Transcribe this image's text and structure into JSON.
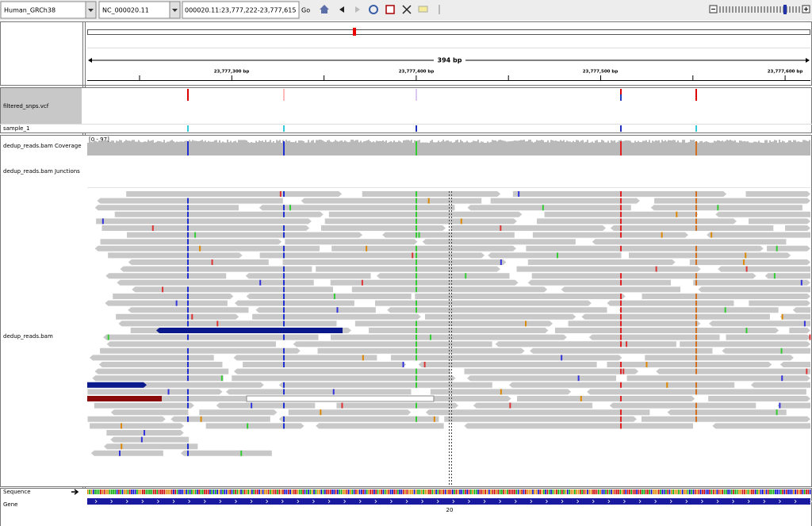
{
  "toolbar": {
    "genome": "Human_GRCh38",
    "chromosome": "NC_000020.11",
    "locus": "000020.11:23,777,222-23,777,615",
    "go": "Go"
  },
  "ruler": {
    "span": "394 bp",
    "ticks": [
      "23,777,300 bp",
      "23,777,400 bp",
      "23,777,500 bp",
      "23,777,600 bp"
    ]
  },
  "tracks": {
    "vcf": "filtered_snps.vcf",
    "sample": "sample_1",
    "coverage": "dedup_reads.bam Coverage",
    "coverage_range": "[0 - 97]",
    "junctions": "dedup_reads.bam Junctions",
    "alignments": "dedup_reads.bam",
    "sequence": "Sequence",
    "gene": "Gene",
    "gene_label": "20"
  }
}
